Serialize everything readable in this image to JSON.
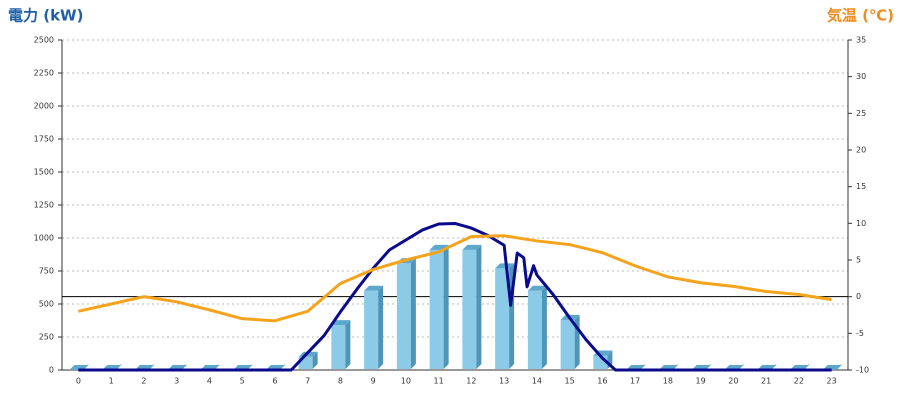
{
  "chart_data": {
    "type": "bar",
    "title": "電力 (kW)",
    "title_color": "#1f5fa6",
    "y2_title": "気温 (℃)",
    "y2_title_color": "#f08c1e",
    "categories": [
      "0",
      "1",
      "2",
      "3",
      "4",
      "5",
      "6",
      "7",
      "8",
      "9",
      "10",
      "11",
      "12",
      "13",
      "14",
      "15",
      "16",
      "17",
      "18",
      "19",
      "20",
      "21",
      "22",
      "23"
    ],
    "series": [
      {
        "type": "bar",
        "color": "#8ccbe8",
        "values": [
          0,
          0,
          0,
          0,
          0,
          0,
          0,
          100,
          340,
          600,
          810,
          910,
          910,
          770,
          600,
          380,
          110,
          0,
          0,
          0,
          0,
          0,
          0,
          0
        ]
      },
      {
        "type": "line",
        "color": "#0a0a8c",
        "x": [
          0,
          6.5,
          7,
          7.5,
          8,
          8.5,
          9,
          9.5,
          10,
          10.5,
          11,
          11.5,
          12,
          12.5,
          13,
          13.2,
          13.4,
          13.6,
          13.7,
          13.9,
          14,
          14.5,
          15,
          15.5,
          16,
          16.4,
          23
        ],
        "values": [
          0,
          0,
          130,
          260,
          440,
          610,
          770,
          910,
          985,
          1060,
          1106,
          1110,
          1075,
          1020,
          945,
          490,
          886,
          850,
          630,
          790,
          720,
          570,
          395,
          230,
          90,
          0,
          0
        ]
      },
      {
        "type": "line",
        "axis": "y2",
        "color": "#f5a31c",
        "values": [
          -2,
          -1,
          0,
          -0.7,
          -1.8,
          -3,
          -3.3,
          -2,
          1.8,
          3.7,
          5,
          6.1,
          8.2,
          8.3,
          7.6,
          7.1,
          6,
          4.2,
          2.7,
          1.9,
          1.4,
          0.7,
          0.3,
          -0.4
        ]
      }
    ],
    "ylim": [
      0,
      2500
    ],
    "yticks": [
      0,
      250,
      500,
      750,
      1000,
      1250,
      1500,
      1750,
      2000,
      2250,
      2500
    ],
    "y2lim": [
      -10,
      35
    ],
    "y2ticks": [
      -10,
      -5,
      0,
      5,
      10,
      15,
      20,
      25,
      30,
      35
    ],
    "grid": true,
    "reference_line": {
      "axis": "y2",
      "value": 0
    }
  }
}
